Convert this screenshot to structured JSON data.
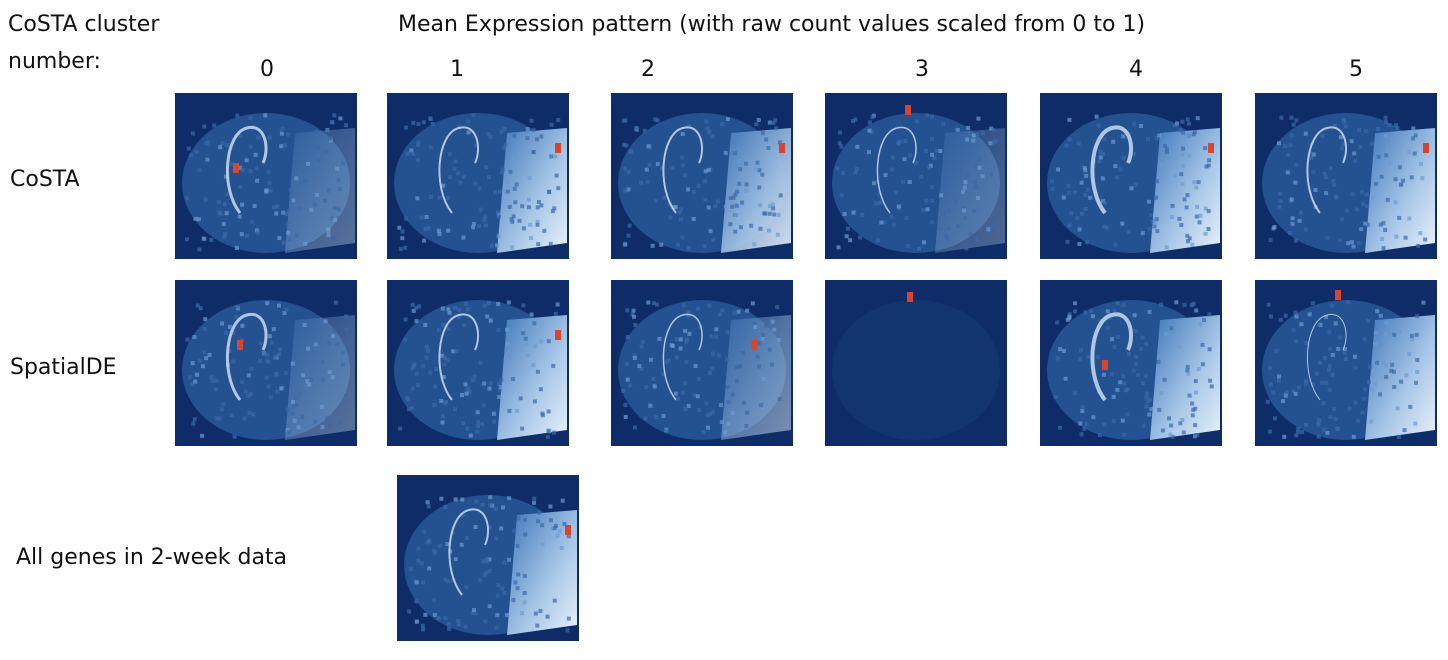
{
  "header": {
    "row_title": [
      "CoSTA cluster",
      "number:"
    ],
    "title": "Mean Expression pattern (with raw count values scaled from 0 to 1)"
  },
  "columns": [
    "0",
    "1",
    "2",
    "3",
    "4",
    "5"
  ],
  "rows": [
    "CoSTA",
    "SpatialDE",
    "All genes in 2-week data"
  ]
}
